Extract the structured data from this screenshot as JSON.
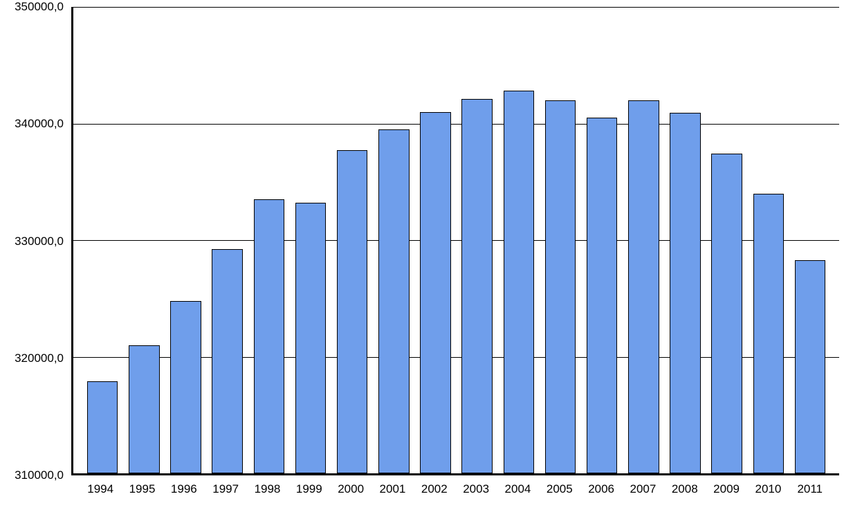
{
  "chart": {
    "type": "bar",
    "background_color": "#ffffff",
    "axis_color": "#000000",
    "grid_color": "#000000",
    "axis_line_width": 3,
    "grid_line_width": 1.5,
    "bar_fill": "#6f9eeb",
    "bar_border": "#000000",
    "bar_border_width": 1.5,
    "bar_width_ratio": 0.74,
    "ylim": [
      310000,
      350000
    ],
    "ytick_step": 10000,
    "ytick_labels": [
      "310000,0",
      "320000,0",
      "330000,0",
      "340000,0",
      "350000,0"
    ],
    "ytick_fontsize": 17,
    "xtick_fontsize": 17,
    "categories": [
      "1994",
      "1995",
      "1996",
      "1997",
      "1998",
      "1999",
      "2000",
      "2001",
      "2002",
      "2003",
      "2004",
      "2005",
      "2006",
      "2007",
      "2008",
      "2009",
      "2010",
      "2011"
    ],
    "values": [
      317900,
      321000,
      324800,
      329200,
      333500,
      333200,
      337700,
      339500,
      341000,
      342100,
      342800,
      342000,
      340500,
      342000,
      340900,
      337400,
      334000,
      328300
    ]
  }
}
